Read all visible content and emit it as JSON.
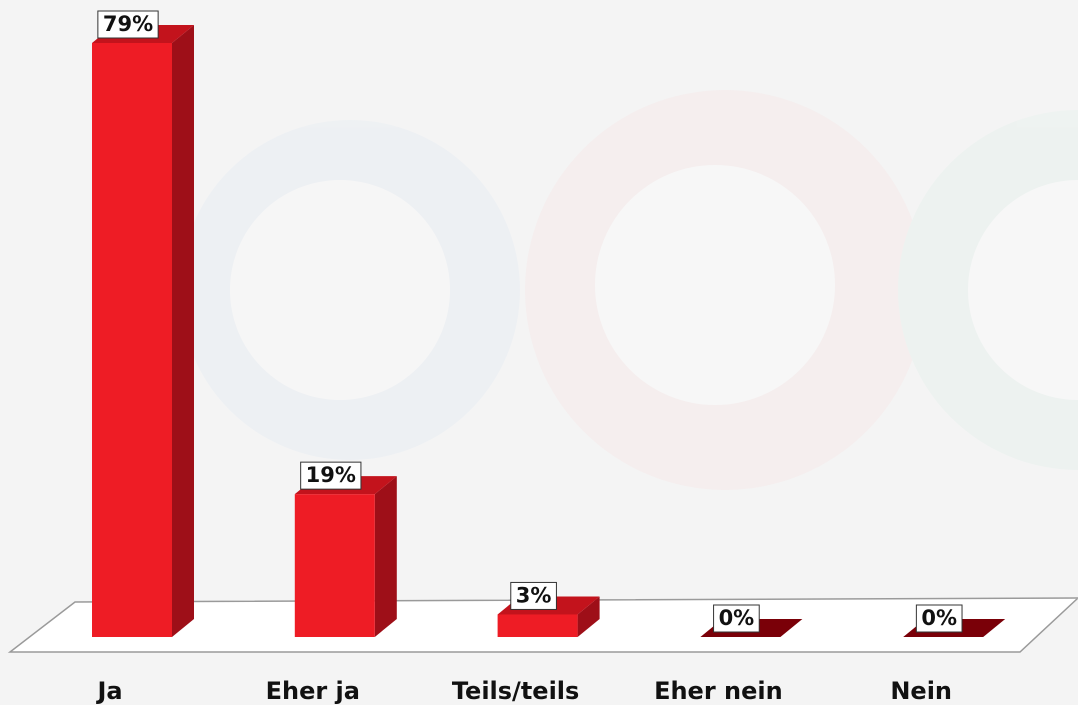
{
  "chart_data": {
    "type": "bar",
    "categories": [
      "Ja",
      "Eher ja",
      "Teils/teils",
      "Eher nein",
      "Nein"
    ],
    "values": [
      79,
      19,
      3,
      0,
      0
    ],
    "value_labels": [
      "79%",
      "19%",
      "3%",
      "0%",
      "0%"
    ],
    "color": "#ee1c25"
  }
}
